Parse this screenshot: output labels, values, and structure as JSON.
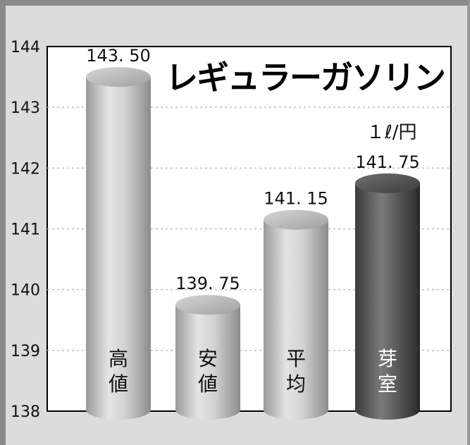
{
  "chart_data": {
    "type": "bar",
    "title": "レギュラーガソリン",
    "unit": "１ℓ/円",
    "categories": [
      "高値",
      "安値",
      "平均",
      "芽室"
    ],
    "values": [
      143.5,
      139.75,
      141.15,
      141.75
    ],
    "value_labels": [
      "143. 50",
      "139. 75",
      "141. 15",
      "141. 75"
    ],
    "yticks": [
      "144",
      "143",
      "142",
      "141",
      "140",
      "139",
      "138"
    ],
    "ylim": [
      138,
      144
    ],
    "grid": true,
    "bar_colors": [
      "#c8c8c8",
      "#c8c8c8",
      "#c8c8c8",
      "#6a6a6a"
    ],
    "category_label_colors": [
      "#111111",
      "#111111",
      "#111111",
      "#ffffff"
    ]
  }
}
